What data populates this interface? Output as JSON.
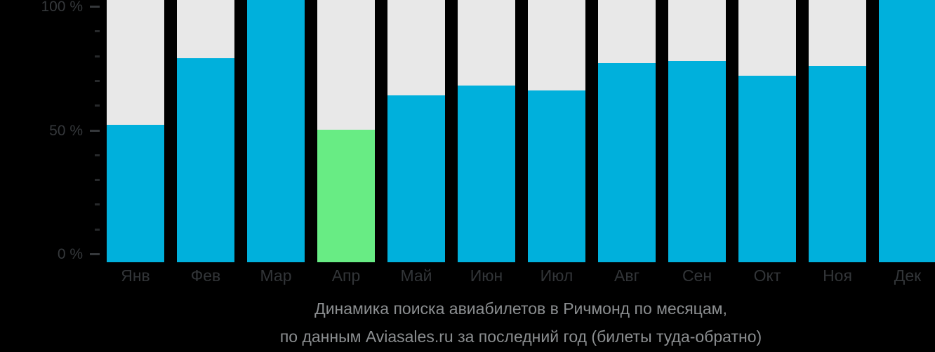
{
  "chart_data": {
    "type": "bar",
    "title": "",
    "xlabel": "",
    "ylabel": "",
    "categories": [
      "Янв",
      "Фев",
      "Мар",
      "Апр",
      "Май",
      "Июн",
      "Июл",
      "Авг",
      "Сен",
      "Окт",
      "Ноя",
      "Дек"
    ],
    "category_keys": [
      "jan",
      "feb",
      "mar",
      "apr",
      "may",
      "jun",
      "jul",
      "aug",
      "sep",
      "oct",
      "nov",
      "dec"
    ],
    "values": [
      52,
      79,
      100,
      50,
      64,
      68,
      66,
      77,
      78,
      72,
      76,
      100
    ],
    "highlight_index": 3,
    "ylim": [
      0,
      100
    ],
    "yticks": [
      {
        "value": 100,
        "label": "100 %"
      },
      {
        "value": 50,
        "label": "50 %"
      },
      {
        "value": 0,
        "label": "0 %"
      }
    ],
    "minor_ticks": [
      10,
      20,
      30,
      40,
      60,
      70,
      80,
      90
    ],
    "grid": false,
    "legend": false,
    "colors": {
      "bar": "#00b0dc",
      "highlight": "#68ec84",
      "track": "#e8e8e8",
      "background": "#000000",
      "axis_text": "#35383b",
      "caption_text": "#8b8e90"
    }
  },
  "caption": {
    "line1": "Динамика поиска авиабилетов в Ричмонд по месяцам,",
    "line2": "по данным Aviasales.ru за последний год (билеты туда-обратно)"
  }
}
